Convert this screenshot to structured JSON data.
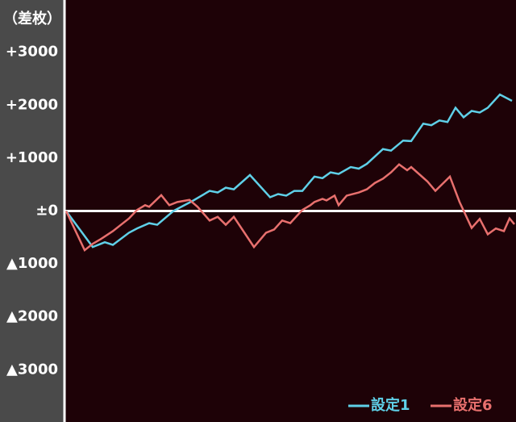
{
  "chart_data": {
    "type": "line",
    "y_label": "（差枚）",
    "ylim": [
      -3985,
      3985
    ],
    "yticks": [
      {
        "value": 3000,
        "label": "+3000"
      },
      {
        "value": 2000,
        "label": "+2000"
      },
      {
        "value": 1000,
        "label": "+1000"
      },
      {
        "value": 0,
        "label": "±0"
      },
      {
        "value": -1000,
        "label": "▲1000"
      },
      {
        "value": -2000,
        "label": "▲2000"
      },
      {
        "value": -3000,
        "label": "▲3000"
      }
    ],
    "xlim": [
      0,
      560
    ],
    "series": [
      {
        "name": "設定1",
        "color": "#5fd0e8",
        "x": [
          2,
          35,
          50,
          60,
          80,
          90,
          105,
          115,
          135,
          150,
          160,
          180,
          190,
          200,
          210,
          230,
          255,
          265,
          275,
          285,
          295,
          310,
          320,
          330,
          340,
          355,
          365,
          375,
          395,
          405,
          420,
          430,
          445,
          455,
          465,
          475,
          485,
          495,
          505,
          515,
          525,
          540,
          555
        ],
        "values": [
          0,
          -680,
          -590,
          -640,
          -410,
          -330,
          -230,
          -260,
          0,
          120,
          200,
          380,
          350,
          440,
          410,
          680,
          260,
          320,
          290,
          380,
          380,
          650,
          620,
          730,
          700,
          830,
          800,
          890,
          1170,
          1140,
          1330,
          1320,
          1650,
          1620,
          1710,
          1680,
          1950,
          1770,
          1890,
          1860,
          1950,
          2200,
          2080
        ]
      },
      {
        "name": "設定6",
        "color": "#e8706e",
        "x": [
          2,
          25,
          35,
          45,
          60,
          70,
          80,
          90,
          100,
          105,
          120,
          130,
          140,
          155,
          165,
          180,
          190,
          200,
          210,
          235,
          250,
          260,
          270,
          280,
          295,
          305,
          310,
          320,
          325,
          335,
          340,
          350,
          365,
          375,
          385,
          395,
          405,
          415,
          425,
          430,
          450,
          460,
          470,
          478,
          490,
          505,
          515,
          525,
          535,
          545,
          552,
          558
        ],
        "values": [
          0,
          -740,
          -620,
          -530,
          -380,
          -260,
          -140,
          20,
          110,
          80,
          300,
          110,
          170,
          210,
          80,
          -180,
          -110,
          -260,
          -110,
          -680,
          -410,
          -350,
          -180,
          -230,
          20,
          110,
          170,
          230,
          200,
          290,
          110,
          290,
          350,
          410,
          530,
          610,
          730,
          880,
          770,
          830,
          560,
          380,
          530,
          650,
          170,
          -320,
          -150,
          -440,
          -330,
          -380,
          -140,
          -250
        ]
      }
    ]
  }
}
